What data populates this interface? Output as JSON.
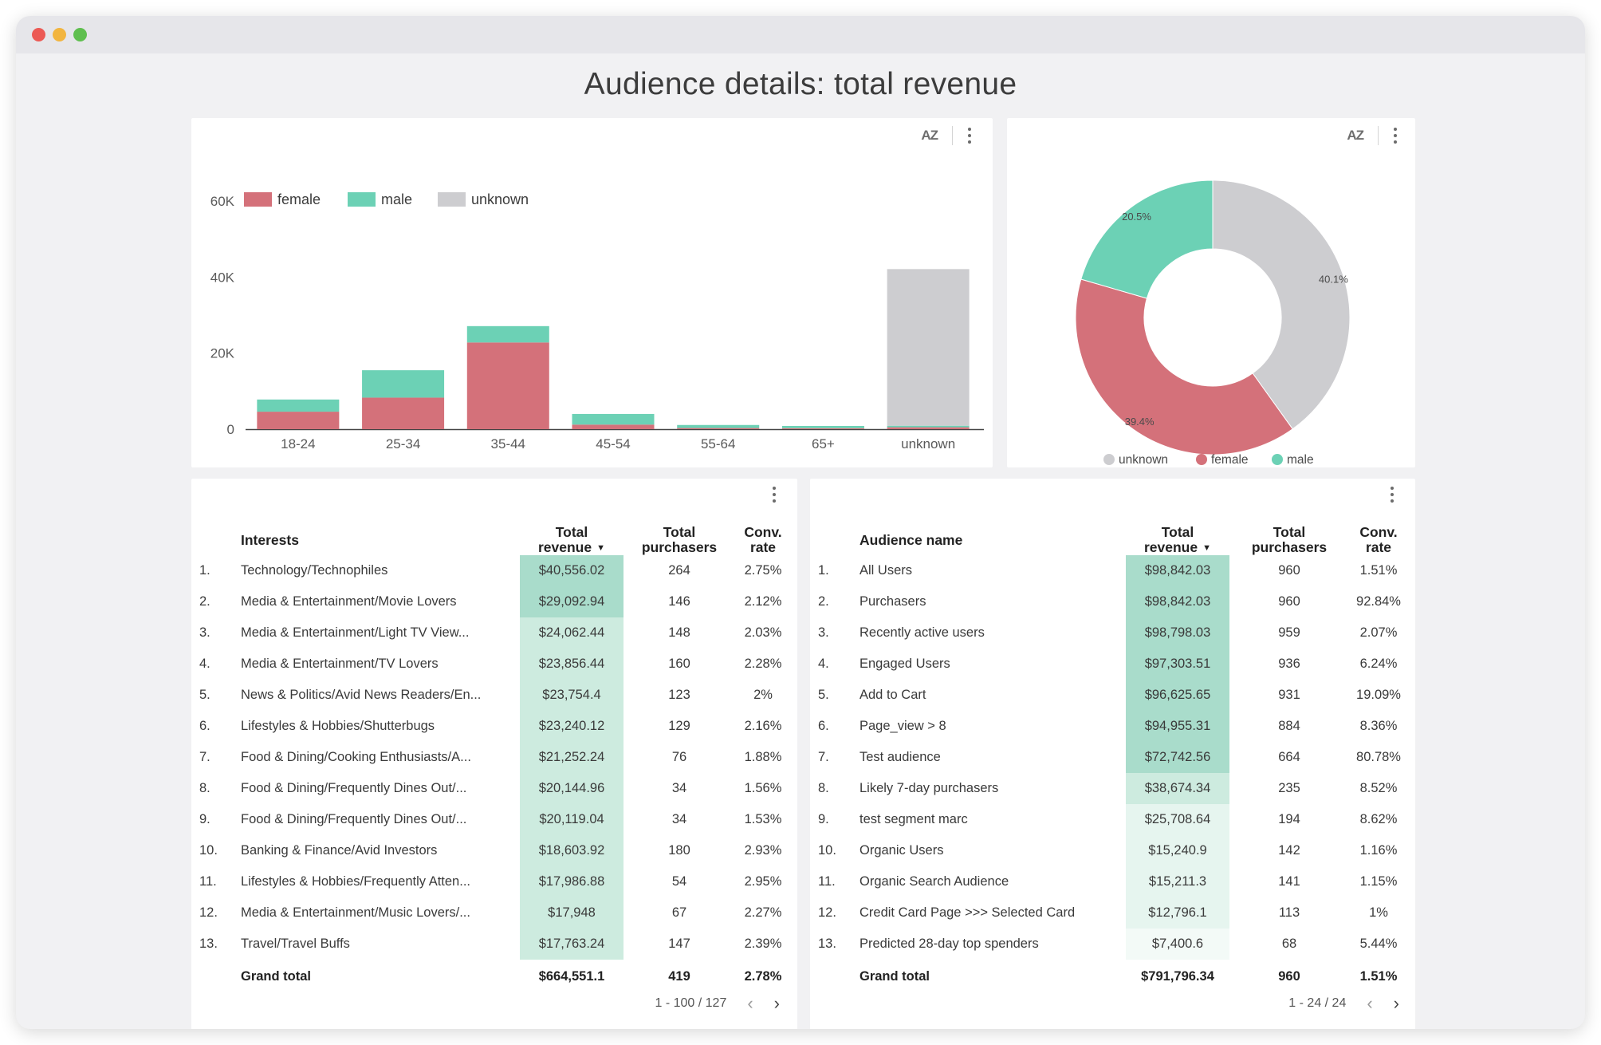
{
  "page_title": "Audience details: total revenue",
  "colors": {
    "female": "#d4717a",
    "male": "#6cd1b5",
    "unknown": "#cdcdd0",
    "heat_strong": "#a9dccb",
    "heat_mid": "#cdebdf",
    "heat_light": "#e6f5ef"
  },
  "bar_chart": {
    "sort_label": "AZ",
    "chart_data": {
      "type": "bar",
      "stacked": true,
      "categories": [
        "18-24",
        "25-34",
        "35-44",
        "45-54",
        "55-64",
        "65+",
        "unknown"
      ],
      "series": [
        {
          "name": "female",
          "values": [
            4600,
            8300,
            22800,
            1200,
            300,
            250,
            500
          ]
        },
        {
          "name": "male",
          "values": [
            3200,
            7200,
            4300,
            2800,
            800,
            600,
            400
          ]
        },
        {
          "name": "unknown",
          "values": [
            0,
            0,
            0,
            0,
            0,
            0,
            41200
          ]
        }
      ],
      "ylim": [
        0,
        60000
      ],
      "y_ticks": [
        "0",
        "20K",
        "40K",
        "60K"
      ],
      "y_tick_values": [
        0,
        20000,
        40000,
        60000
      ],
      "legend": [
        "female",
        "male",
        "unknown"
      ],
      "legend_position": "top-left"
    }
  },
  "donut_chart": {
    "sort_label": "AZ",
    "chart_data": {
      "type": "pie",
      "donut": true,
      "slices": [
        {
          "name": "unknown",
          "value": 40.1,
          "label": "40.1%"
        },
        {
          "name": "female",
          "value": 39.4,
          "label": "39.4%"
        },
        {
          "name": "male",
          "value": 20.5,
          "label": "20.5%"
        }
      ],
      "legend": [
        "unknown",
        "female",
        "male"
      ],
      "legend_position": "bottom"
    }
  },
  "interests_table": {
    "headers": {
      "dimension": "Interests",
      "revenue_line1": "Total",
      "revenue_line2": "revenue",
      "purchasers_line1": "Total",
      "purchasers_line2": "purchasers",
      "conv_line1": "Conv.",
      "conv_line2": "rate"
    },
    "rows": [
      {
        "idx": "1.",
        "name": "Technology/Technophiles",
        "revenue": "$40,556.02",
        "purchasers": "264",
        "conv": "2.75%"
      },
      {
        "idx": "2.",
        "name": "Media & Entertainment/Movie Lovers",
        "revenue": "$29,092.94",
        "purchasers": "146",
        "conv": "2.12%"
      },
      {
        "idx": "3.",
        "name": "Media & Entertainment/Light TV View...",
        "revenue": "$24,062.44",
        "purchasers": "148",
        "conv": "2.03%"
      },
      {
        "idx": "4.",
        "name": "Media & Entertainment/TV Lovers",
        "revenue": "$23,856.44",
        "purchasers": "160",
        "conv": "2.28%"
      },
      {
        "idx": "5.",
        "name": "News & Politics/Avid News Readers/En...",
        "revenue": "$23,754.4",
        "purchasers": "123",
        "conv": "2%"
      },
      {
        "idx": "6.",
        "name": "Lifestyles & Hobbies/Shutterbugs",
        "revenue": "$23,240.12",
        "purchasers": "129",
        "conv": "2.16%"
      },
      {
        "idx": "7.",
        "name": "Food & Dining/Cooking Enthusiasts/A...",
        "revenue": "$21,252.24",
        "purchasers": "76",
        "conv": "1.88%"
      },
      {
        "idx": "8.",
        "name": "Food & Dining/Frequently Dines Out/...",
        "revenue": "$20,144.96",
        "purchasers": "34",
        "conv": "1.56%"
      },
      {
        "idx": "9.",
        "name": "Food & Dining/Frequently Dines Out/...",
        "revenue": "$20,119.04",
        "purchasers": "34",
        "conv": "1.53%"
      },
      {
        "idx": "10.",
        "name": "Banking & Finance/Avid Investors",
        "revenue": "$18,603.92",
        "purchasers": "180",
        "conv": "2.93%"
      },
      {
        "idx": "11.",
        "name": "Lifestyles & Hobbies/Frequently Atten...",
        "revenue": "$17,986.88",
        "purchasers": "54",
        "conv": "2.95%"
      },
      {
        "idx": "12.",
        "name": "Media & Entertainment/Music Lovers/...",
        "revenue": "$17,948",
        "purchasers": "67",
        "conv": "2.27%"
      },
      {
        "idx": "13.",
        "name": "Travel/Travel Buffs",
        "revenue": "$17,763.24",
        "purchasers": "147",
        "conv": "2.39%"
      }
    ],
    "total": {
      "label": "Grand total",
      "revenue": "$664,551.1",
      "purchasers": "419",
      "conv": "2.78%"
    },
    "pager": "1 - 100 / 127"
  },
  "audience_table": {
    "headers": {
      "dimension": "Audience name",
      "revenue_line1": "Total",
      "revenue_line2": "revenue",
      "purchasers_line1": "Total",
      "purchasers_line2": "purchasers",
      "conv_line1": "Conv.",
      "conv_line2": "rate"
    },
    "rows": [
      {
        "idx": "1.",
        "name": "All Users",
        "revenue": "$98,842.03",
        "purchasers": "960",
        "conv": "1.51%"
      },
      {
        "idx": "2.",
        "name": "Purchasers",
        "revenue": "$98,842.03",
        "purchasers": "960",
        "conv": "92.84%"
      },
      {
        "idx": "3.",
        "name": "Recently active users",
        "revenue": "$98,798.03",
        "purchasers": "959",
        "conv": "2.07%"
      },
      {
        "idx": "4.",
        "name": "Engaged Users",
        "revenue": "$97,303.51",
        "purchasers": "936",
        "conv": "6.24%"
      },
      {
        "idx": "5.",
        "name": "Add to Cart",
        "revenue": "$96,625.65",
        "purchasers": "931",
        "conv": "19.09%"
      },
      {
        "idx": "6.",
        "name": "Page_view > 8",
        "revenue": "$94,955.31",
        "purchasers": "884",
        "conv": "8.36%"
      },
      {
        "idx": "7.",
        "name": "Test audience",
        "revenue": "$72,742.56",
        "purchasers": "664",
        "conv": "80.78%"
      },
      {
        "idx": "8.",
        "name": "Likely 7-day purchasers",
        "revenue": "$38,674.34",
        "purchasers": "235",
        "conv": "8.52%"
      },
      {
        "idx": "9.",
        "name": "test segment marc",
        "revenue": "$25,708.64",
        "purchasers": "194",
        "conv": "8.62%"
      },
      {
        "idx": "10.",
        "name": "Organic Users",
        "revenue": "$15,240.9",
        "purchasers": "142",
        "conv": "1.16%"
      },
      {
        "idx": "11.",
        "name": "Organic Search Audience",
        "revenue": "$15,211.3",
        "purchasers": "141",
        "conv": "1.15%"
      },
      {
        "idx": "12.",
        "name": "Credit Card Page >>> Selected Card",
        "revenue": "$12,796.1",
        "purchasers": "113",
        "conv": "1%"
      },
      {
        "idx": "13.",
        "name": "Predicted 28-day top spenders",
        "revenue": "$7,400.6",
        "purchasers": "68",
        "conv": "5.44%"
      }
    ],
    "total": {
      "label": "Grand total",
      "revenue": "$791,796.34",
      "purchasers": "960",
      "conv": "1.51%"
    },
    "pager": "1 - 24 / 24"
  }
}
